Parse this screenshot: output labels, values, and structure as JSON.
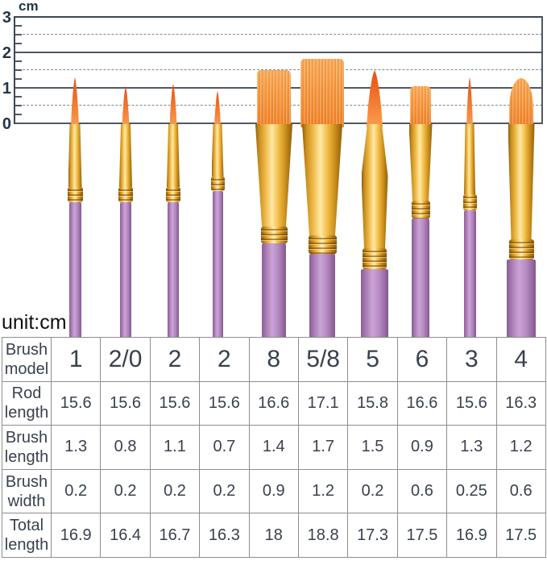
{
  "ruler": {
    "unit_label": "cm",
    "axis_labels": [
      "3",
      "2",
      "1",
      "0"
    ],
    "min_cm": 0,
    "max_cm": 3,
    "solid_gridlines_cm": [
      0,
      1,
      2,
      3
    ],
    "dashed_gridlines_cm": [
      0.5,
      1.5,
      2.5
    ]
  },
  "unit_note": "unit:cm",
  "brushes": [
    {
      "model": "1",
      "tip_shape": "round-pointed"
    },
    {
      "model": "2/0",
      "tip_shape": "round-pointed"
    },
    {
      "model": "2",
      "tip_shape": "round-pointed"
    },
    {
      "model": "2",
      "tip_shape": "round-pointed"
    },
    {
      "model": "8",
      "tip_shape": "flat-wash"
    },
    {
      "model": "5/8",
      "tip_shape": "flat-wash"
    },
    {
      "model": "5",
      "tip_shape": "round-pointed-large"
    },
    {
      "model": "6",
      "tip_shape": "flat-shader"
    },
    {
      "model": "3",
      "tip_shape": "round-pointed"
    },
    {
      "model": "4",
      "tip_shape": "filbert"
    }
  ],
  "chart_data": {
    "type": "table",
    "unit": "cm",
    "category_header": "Brush\nmodel",
    "categories": [
      "1",
      "2/0",
      "2",
      "2",
      "8",
      "5/8",
      "5",
      "6",
      "3",
      "4"
    ],
    "series": [
      {
        "name": "Rod\nlength",
        "values": [
          "15.6",
          "15.6",
          "15.6",
          "15.6",
          "16.6",
          "17.1",
          "15.8",
          "16.6",
          "15.6",
          "16.3"
        ]
      },
      {
        "name": "Brush\nlength",
        "values": [
          "1.3",
          "0.8",
          "1.1",
          "0.7",
          "1.4",
          "1.7",
          "1.5",
          "0.9",
          "1.3",
          "1.2"
        ]
      },
      {
        "name": "Brush\nwidth",
        "values": [
          "0.2",
          "0.2",
          "0.2",
          "0.2",
          "0.9",
          "1.2",
          "0.2",
          "0.6",
          "0.25",
          "0.6"
        ]
      },
      {
        "name": "Total\nlength",
        "values": [
          "16.9",
          "16.4",
          "16.7",
          "16.3",
          "18",
          "18.8",
          "17.3",
          "17.5",
          "16.9",
          "17.5"
        ]
      }
    ],
    "ruler": {
      "min": 0,
      "max": 3,
      "unit": "cm",
      "solid_gridlines": [
        0,
        1,
        2,
        3
      ],
      "dashed_gridlines": [
        0.5,
        1.5,
        2.5
      ]
    }
  },
  "colors": {
    "handle_purple": "#b58ac2",
    "ferrule_gold": "#eaa93c",
    "bristle_orange": "#f08228",
    "table_text": "#39414e",
    "ruler_text": "#243646",
    "grid_solid": "#4f5864",
    "grid_dashed": "#7e8791"
  }
}
